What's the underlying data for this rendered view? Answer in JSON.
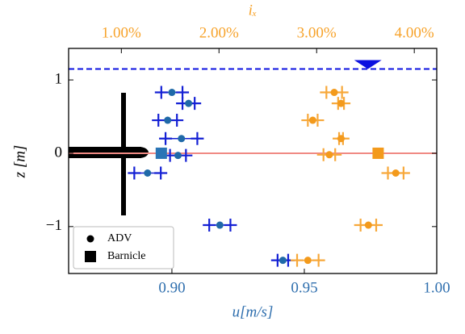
{
  "chart_data": {
    "type": "scatter",
    "xlabel": "u[m/s]",
    "ylabel": "z [m]",
    "x2label": "iₓ",
    "xlim": [
      0.861,
      1.0
    ],
    "xticks": [
      {
        "value": 0.9,
        "label": "0.90"
      },
      {
        "value": 0.95,
        "label": "0.95"
      },
      {
        "value": 1.0,
        "label": "1.00"
      }
    ],
    "x2lim": [
      0.46,
      4.23
    ],
    "x2ticks": [
      {
        "value": 1,
        "label": "1.00%"
      },
      {
        "value": 2,
        "label": "2.00%"
      },
      {
        "value": 3,
        "label": "3.00%"
      },
      {
        "value": 4,
        "label": "4.00%"
      }
    ],
    "ylim": [
      -1.64,
      1.43
    ],
    "yticks": [
      {
        "value": -1,
        "label": "−1"
      },
      0,
      1
    ],
    "x_color": "#2f6fae",
    "x2_color": "#f7a32b",
    "surface_line": {
      "z": 1.15,
      "u": 0.974,
      "color": "#0b10e0"
    },
    "bed_line": {
      "z": 0,
      "color": "#f08a84"
    },
    "series": [
      {
        "marker": "circle",
        "axis": "x",
        "color": "#1f69a8",
        "error_color": "#1420d4",
        "values": [
          0.9,
          0.9063,
          0.8984,
          0.9036,
          0.9023,
          0.8908,
          0.9181,
          0.9419
        ],
        "errors": [
          0.004,
          0.0023,
          0.0035,
          0.006,
          0.003,
          0.005,
          0.004,
          0.002
        ],
        "y": [
          0.83,
          0.68,
          0.45,
          0.2,
          -0.03,
          -0.27,
          -0.98,
          -1.46
        ]
      },
      {
        "marker": "circle",
        "axis": "x2",
        "color": "#f39a1c",
        "error_color": "#f7a83a",
        "values": [
          3.18,
          3.25,
          2.96,
          3.25,
          3.13,
          3.81,
          3.53,
          2.91
        ],
        "errors": [
          0.08,
          0.03,
          0.05,
          0.02,
          0.06,
          0.08,
          0.08,
          0.11
        ],
        "y": [
          0.83,
          0.68,
          0.45,
          0.2,
          -0.02,
          -0.27,
          -0.98,
          -1.46
        ]
      },
      {
        "marker": "square",
        "axis": "x",
        "color": "#2a75b5",
        "values": [
          0.896
        ],
        "y": [
          0
        ]
      },
      {
        "marker": "square",
        "axis": "x2",
        "color": "#f39a1c",
        "values": [
          3.63
        ],
        "y": [
          0
        ]
      }
    ],
    "legend": [
      {
        "label": "ADV",
        "marker": "circle"
      },
      {
        "label": "Barnicle",
        "marker": "square"
      }
    ],
    "legend_loc": "lower left"
  }
}
